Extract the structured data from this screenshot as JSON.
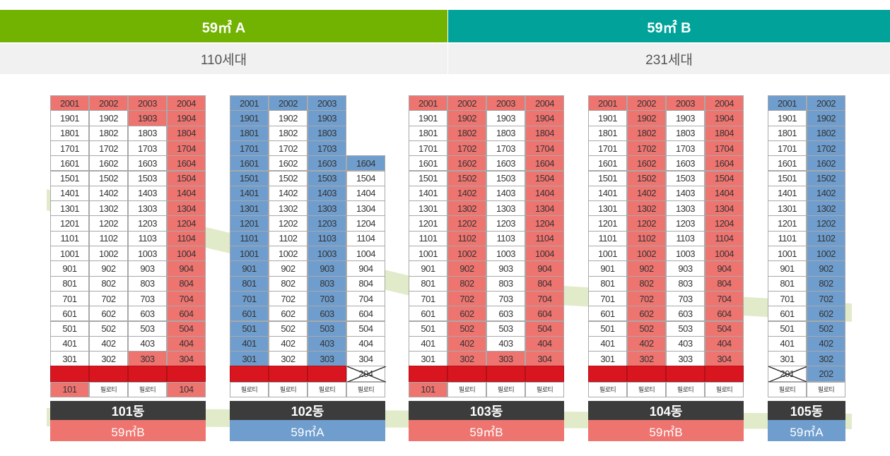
{
  "header": {
    "a": {
      "label": "59㎡ A",
      "count": "110세대",
      "color": "#72b200"
    },
    "b": {
      "label": "59㎡ B",
      "count": "231세대",
      "color": "#00a29a"
    }
  },
  "colors": {
    "A": "#6f9dcd",
    "B": "#ee7470",
    "commercial": "#d9161f",
    "white": "#ffffff",
    "name_bg": "#3c3c3c"
  },
  "pilotis_label": "필로티",
  "buildings": [
    {
      "name": "101동",
      "type_label": "59㎡B",
      "type": "B",
      "lines": [
        {
          "num": 1,
          "top": 20,
          "bottom": 3,
          "types": {
            "default": "w",
            "20": "p"
          },
          "ground": "101",
          "ground_type": "p"
        },
        {
          "num": 2,
          "top": 20,
          "bottom": 3,
          "types": {
            "default": "w",
            "20": "p"
          },
          "ground": "필로티",
          "ground_type": "w"
        },
        {
          "num": 3,
          "top": 20,
          "bottom": 3,
          "types": {
            "default": "w",
            "20": "p",
            "19": "p",
            "3": "p"
          },
          "ground": "필로티",
          "ground_type": "w"
        },
        {
          "num": 4,
          "top": 20,
          "bottom": 3,
          "types": {
            "default": "p"
          },
          "ground": "104",
          "ground_type": "p"
        }
      ]
    },
    {
      "name": "102동",
      "type_label": "59㎡A",
      "type": "A",
      "lines": [
        {
          "num": 1,
          "top": 20,
          "bottom": 3,
          "types": {
            "default": "b"
          },
          "ground": "필로티",
          "ground_type": "w"
        },
        {
          "num": 2,
          "top": 20,
          "bottom": 3,
          "types": {
            "default": "w",
            "20": "b"
          },
          "ground": "필로티",
          "ground_type": "w"
        },
        {
          "num": 3,
          "top": 20,
          "bottom": 3,
          "types": {
            "default": "b"
          },
          "ground": "필로티",
          "ground_type": "w"
        },
        {
          "num": 4,
          "top": 16,
          "bottom": 3,
          "types": {
            "default": "w",
            "16": "b"
          },
          "ground": "필로티",
          "ground_type": "w",
          "crossed": "204"
        }
      ]
    },
    {
      "name": "103동",
      "type_label": "59㎡B",
      "type": "B",
      "lines": [
        {
          "num": 1,
          "top": 20,
          "bottom": 3,
          "types": {
            "default": "w",
            "20": "p"
          },
          "ground": "101",
          "ground_type": "p"
        },
        {
          "num": 2,
          "top": 20,
          "bottom": 3,
          "types": {
            "default": "p"
          },
          "ground": "필로티",
          "ground_type": "w"
        },
        {
          "num": 3,
          "top": 20,
          "bottom": 3,
          "types": {
            "default": "w",
            "20": "p",
            "3": "p"
          },
          "ground": "필로티",
          "ground_type": "w"
        },
        {
          "num": 4,
          "top": 20,
          "bottom": 3,
          "types": {
            "default": "p"
          },
          "ground": "필로티",
          "ground_type": "w"
        }
      ]
    },
    {
      "name": "104동",
      "type_label": "59㎡B",
      "type": "B",
      "lines": [
        {
          "num": 1,
          "top": 20,
          "bottom": 3,
          "types": {
            "default": "w",
            "20": "p"
          },
          "ground": "필로티",
          "ground_type": "w"
        },
        {
          "num": 2,
          "top": 20,
          "bottom": 3,
          "types": {
            "default": "p"
          },
          "ground": "필로티",
          "ground_type": "w"
        },
        {
          "num": 3,
          "top": 20,
          "bottom": 3,
          "types": {
            "default": "w",
            "20": "p"
          },
          "ground": "필로티",
          "ground_type": "w"
        },
        {
          "num": 4,
          "top": 20,
          "bottom": 3,
          "types": {
            "default": "p"
          },
          "ground": "필로티",
          "ground_type": "w"
        }
      ]
    },
    {
      "name": "105동",
      "type_label": "59㎡A",
      "type": "A",
      "lines": [
        {
          "num": 1,
          "top": 20,
          "bottom": 3,
          "types": {
            "default": "w",
            "20": "b"
          },
          "ground": "필로티",
          "ground_type": "w",
          "crossed": "201"
        },
        {
          "num": 2,
          "top": 20,
          "bottom": 2,
          "types": {
            "default": "b"
          },
          "ground": "필로티",
          "ground_type": "w"
        }
      ]
    }
  ]
}
